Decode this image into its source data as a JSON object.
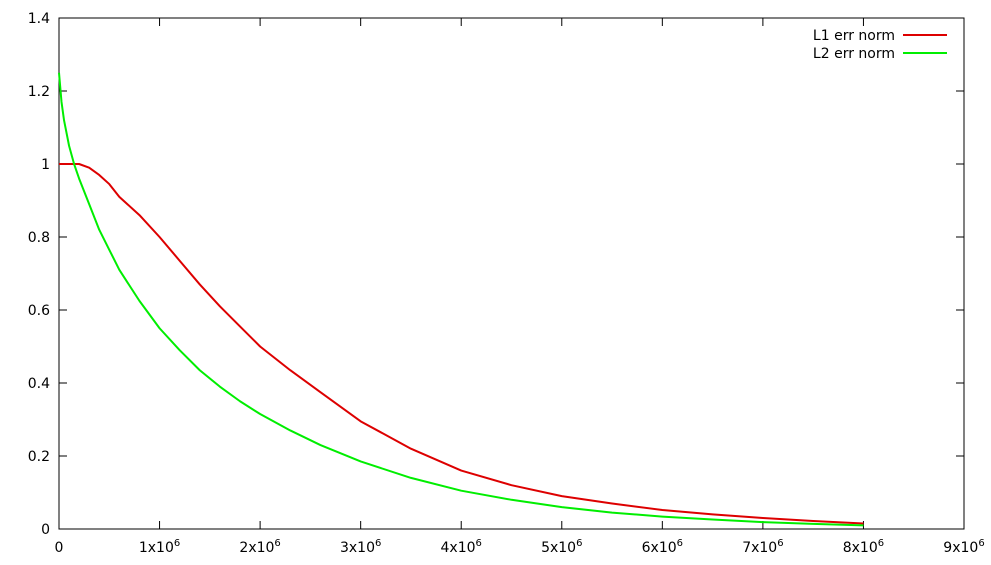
{
  "chart_data": {
    "type": "line",
    "title": "",
    "xlabel": "",
    "ylabel": "",
    "xlim": [
      0,
      9000000
    ],
    "ylim": [
      0,
      1.4
    ],
    "grid": false,
    "legend_position": "top-right",
    "x_ticks": [
      {
        "value": 0,
        "base": "0",
        "exp": ""
      },
      {
        "value": 1000000,
        "base": "1x10",
        "exp": "6"
      },
      {
        "value": 2000000,
        "base": "2x10",
        "exp": "6"
      },
      {
        "value": 3000000,
        "base": "3x10",
        "exp": "6"
      },
      {
        "value": 4000000,
        "base": "4x10",
        "exp": "6"
      },
      {
        "value": 5000000,
        "base": "5x10",
        "exp": "6"
      },
      {
        "value": 6000000,
        "base": "6x10",
        "exp": "6"
      },
      {
        "value": 7000000,
        "base": "7x10",
        "exp": "6"
      },
      {
        "value": 8000000,
        "base": "8x10",
        "exp": "6"
      },
      {
        "value": 9000000,
        "base": "9x10",
        "exp": "6"
      }
    ],
    "y_ticks": [
      {
        "value": 0,
        "label": "0"
      },
      {
        "value": 0.2,
        "label": "0.2"
      },
      {
        "value": 0.4,
        "label": "0.4"
      },
      {
        "value": 0.6,
        "label": "0.6"
      },
      {
        "value": 0.8,
        "label": "0.8"
      },
      {
        "value": 1.0,
        "label": "1"
      },
      {
        "value": 1.2,
        "label": "1.2"
      },
      {
        "value": 1.4,
        "label": "1.4"
      }
    ],
    "series": [
      {
        "name": "L1 err norm",
        "color": "#dd0000",
        "x": [
          0,
          100000,
          200000,
          300000,
          400000,
          500000,
          600000,
          800000,
          1000000,
          1200000,
          1400000,
          1600000,
          1800000,
          2000000,
          2300000,
          2600000,
          3000000,
          3500000,
          4000000,
          4500000,
          5000000,
          5500000,
          6000000,
          6500000,
          7000000,
          7500000,
          8000000
        ],
        "y": [
          1.0,
          1.0,
          1.0,
          0.99,
          0.97,
          0.945,
          0.91,
          0.86,
          0.8,
          0.735,
          0.67,
          0.61,
          0.555,
          0.5,
          0.435,
          0.375,
          0.295,
          0.22,
          0.16,
          0.12,
          0.09,
          0.07,
          0.052,
          0.04,
          0.03,
          0.022,
          0.015
        ]
      },
      {
        "name": "L2 err norm",
        "color": "#00ee00",
        "x": [
          0,
          25000,
          50000,
          100000,
          150000,
          200000,
          300000,
          400000,
          500000,
          600000,
          800000,
          1000000,
          1200000,
          1400000,
          1600000,
          1800000,
          2000000,
          2300000,
          2600000,
          3000000,
          3500000,
          4000000,
          4500000,
          5000000,
          5500000,
          6000000,
          6500000,
          7000000,
          7500000,
          8000000
        ],
        "y": [
          1.25,
          1.17,
          1.12,
          1.05,
          1.0,
          0.96,
          0.89,
          0.82,
          0.765,
          0.71,
          0.625,
          0.55,
          0.49,
          0.435,
          0.39,
          0.35,
          0.315,
          0.27,
          0.23,
          0.185,
          0.14,
          0.105,
          0.08,
          0.06,
          0.045,
          0.034,
          0.026,
          0.019,
          0.014,
          0.01
        ]
      }
    ]
  }
}
